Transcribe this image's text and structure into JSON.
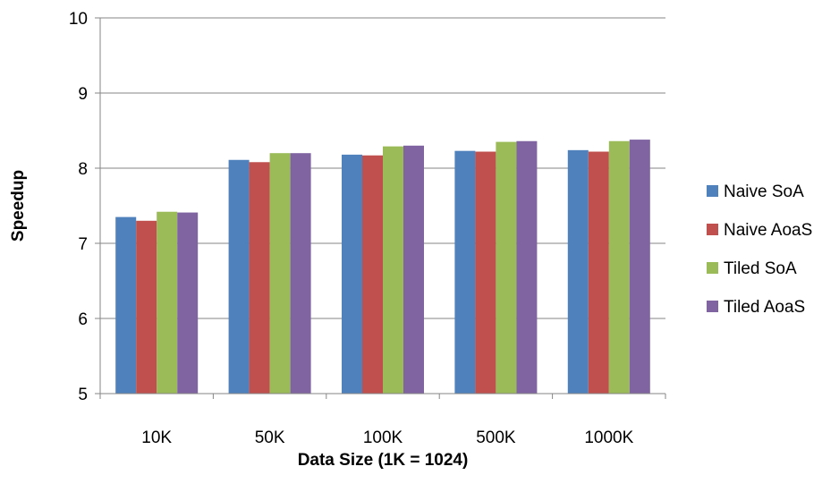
{
  "chart_data": {
    "type": "bar",
    "title": "",
    "xlabel": "Data Size (1K = 1024)",
    "ylabel": "Speedup",
    "ylim": [
      5,
      10
    ],
    "yticks": [
      "5",
      "6",
      "7",
      "8",
      "9",
      "10"
    ],
    "grid": true,
    "legend_position": "right",
    "categories": [
      "10K",
      "50K",
      "100K",
      "500K",
      "1000K"
    ],
    "series": [
      {
        "name": "Naive SoA",
        "color": "#4F81BD",
        "values": [
          7.35,
          8.11,
          8.18,
          8.23,
          8.24
        ]
      },
      {
        "name": "Naive AoaS",
        "color": "#C0504D",
        "values": [
          7.3,
          8.08,
          8.17,
          8.22,
          8.22
        ]
      },
      {
        "name": "Tiled SoA",
        "color": "#9BBB59",
        "values": [
          7.42,
          8.2,
          8.29,
          8.35,
          8.36
        ]
      },
      {
        "name": "Tiled AoaS",
        "color": "#8064A2",
        "values": [
          7.41,
          8.2,
          8.3,
          8.36,
          8.38
        ]
      }
    ]
  }
}
